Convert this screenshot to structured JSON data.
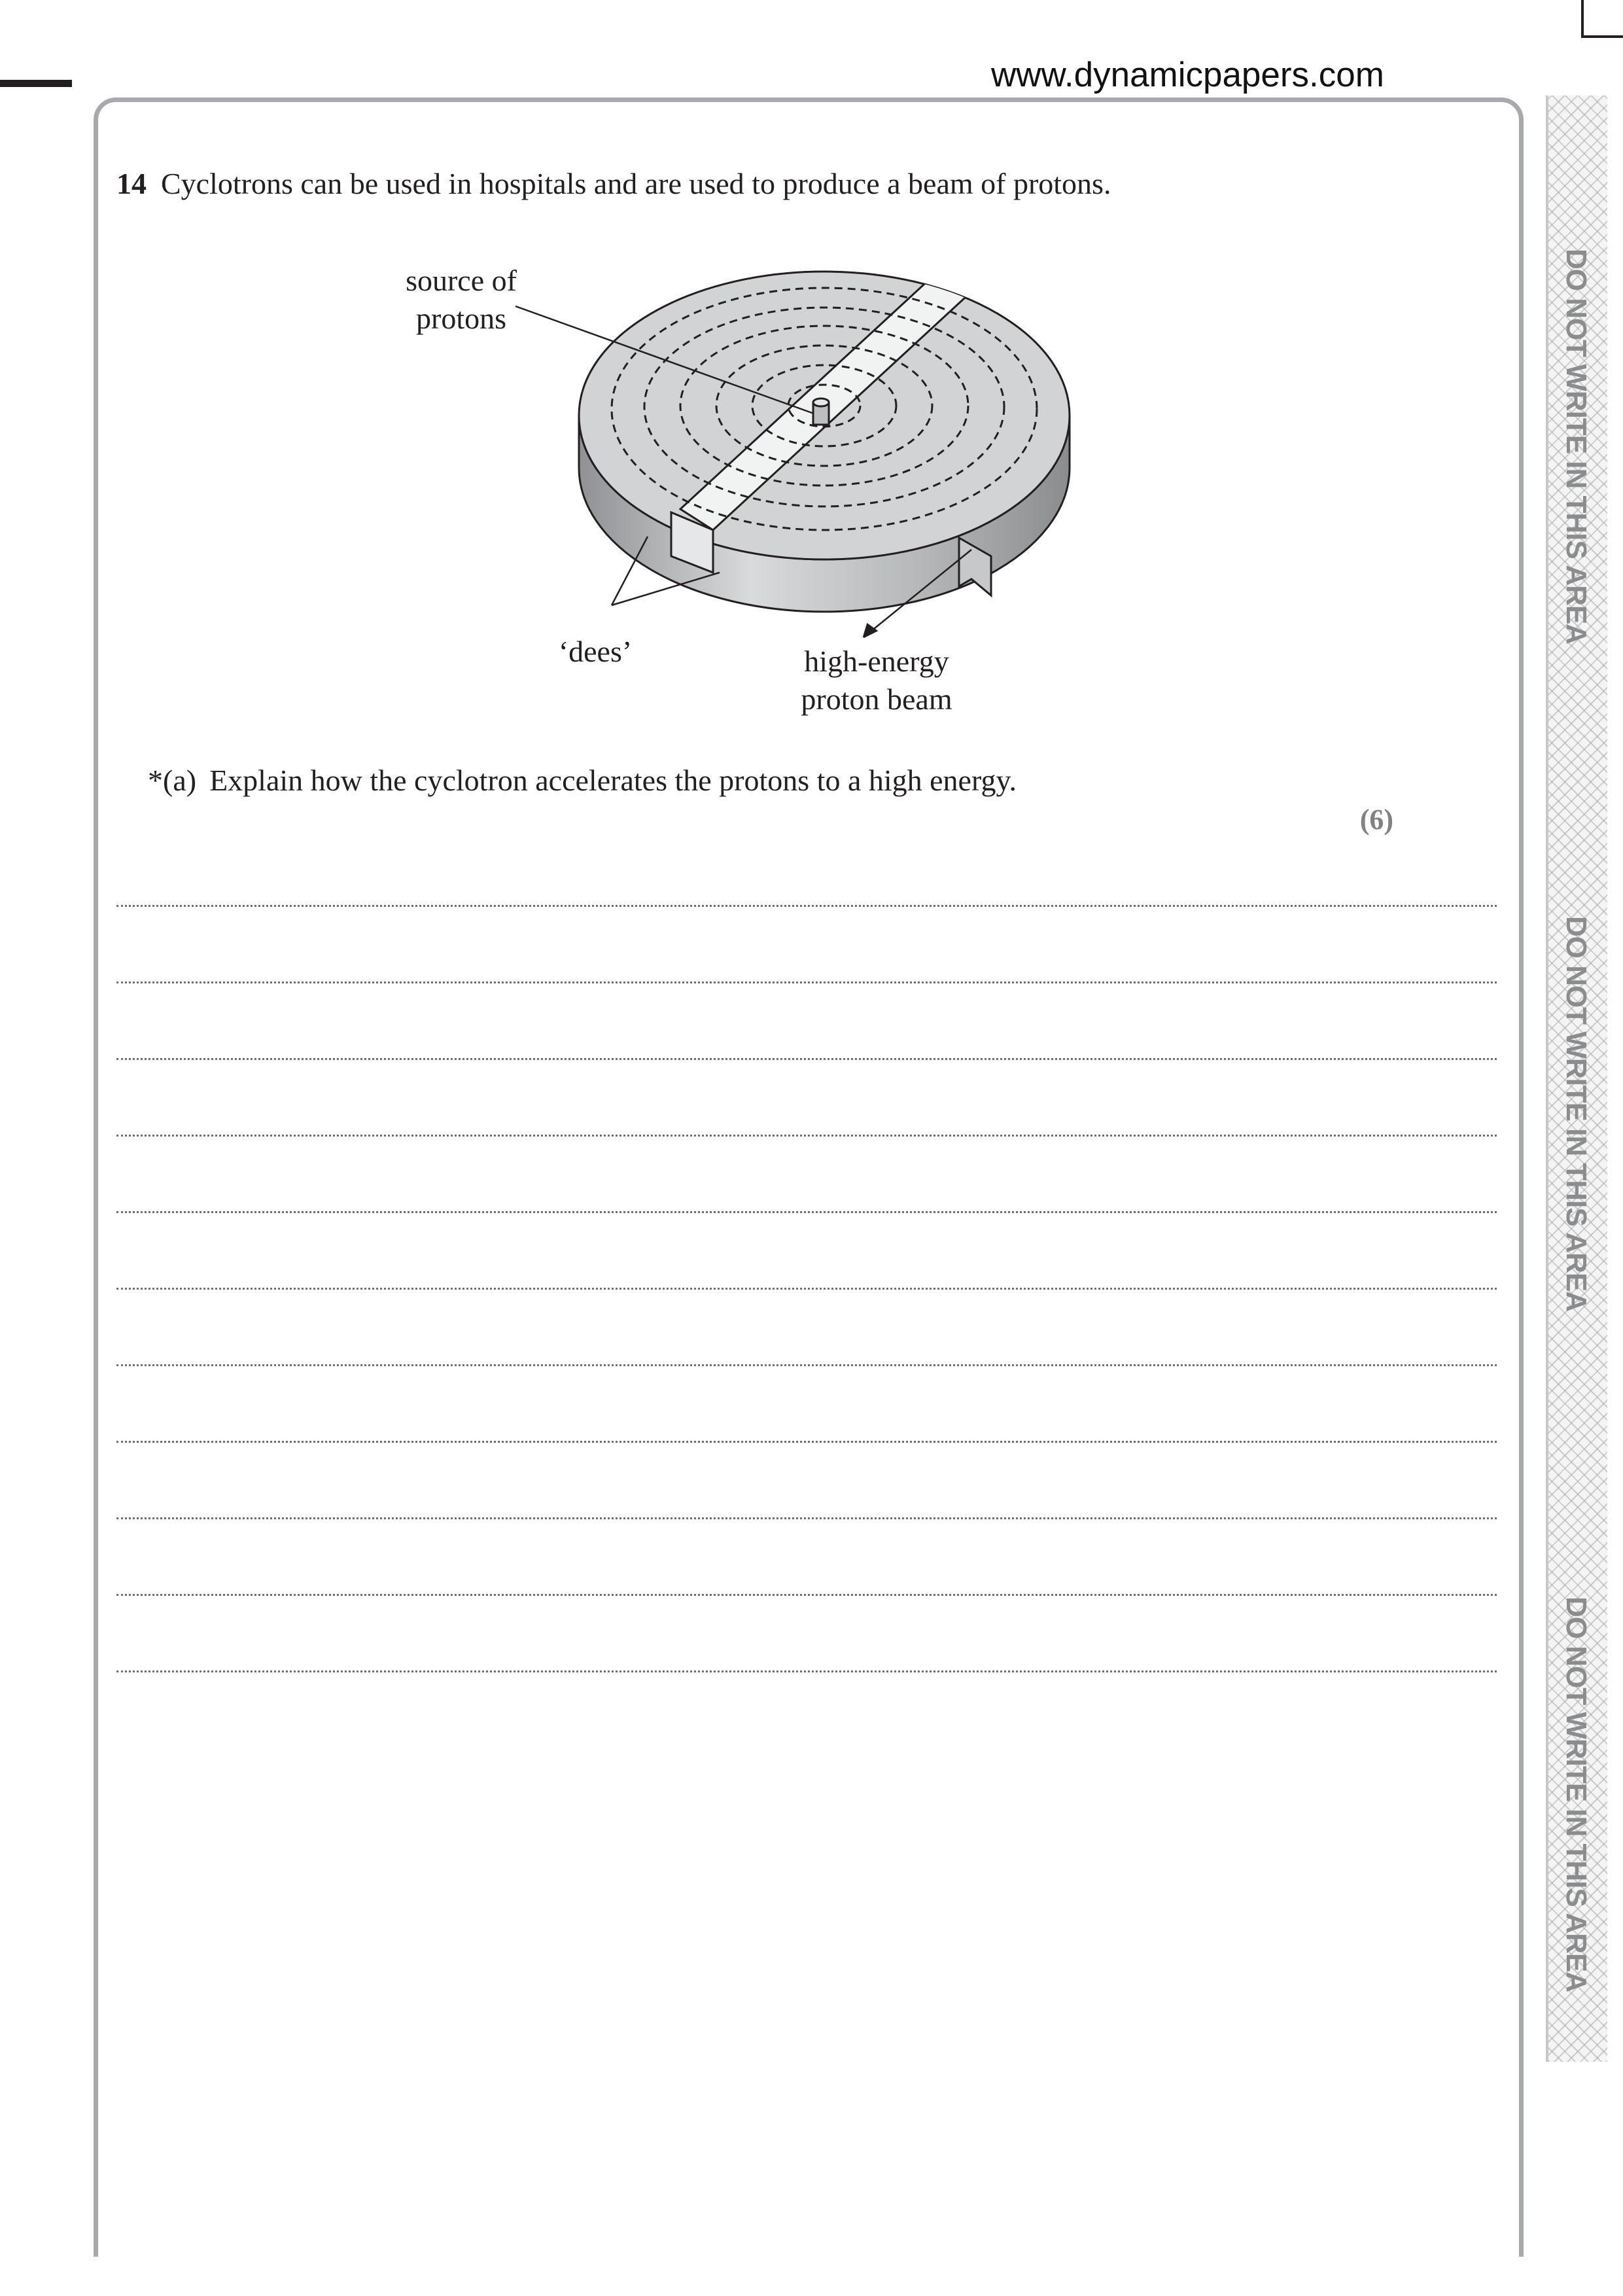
{
  "header": {
    "url": "www.dynamicpapers.com"
  },
  "side_strip": {
    "labels": [
      "DO NOT WRITE IN THIS AREA",
      "DO NOT WRITE IN THIS AREA",
      "DO NOT WRITE IN THIS AREA"
    ]
  },
  "question": {
    "number": "14",
    "text": "Cyclotrons can be used in hospitals and are used to produce a beam of protons."
  },
  "diagram": {
    "labels": {
      "source_line1": "source of",
      "source_line2": "protons",
      "dees": "‘dees’",
      "beam_line1": "high-energy",
      "beam_line2": "proton beam"
    }
  },
  "part_a": {
    "tag": "*(a)",
    "text": "Explain how the cyclotron accelerates the protons to a high energy.",
    "marks": "(6)"
  },
  "answer_area": {
    "line_count": 11
  },
  "colors": {
    "frame": "#a7a9ac",
    "strip_text": "#8a8c8e",
    "marks": "#808285",
    "dee_fill": "#d1d3d4",
    "dee_side": "#b6b8ba",
    "gap_fill": "#f1f2f2"
  }
}
